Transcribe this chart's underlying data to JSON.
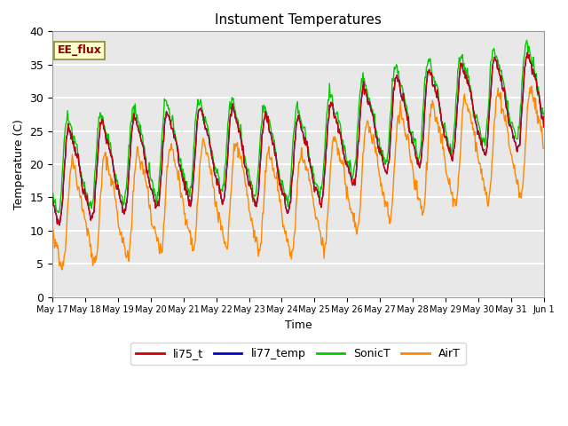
{
  "title": "Instument Temperatures",
  "xlabel": "Time",
  "ylabel": "Temperature (C)",
  "ylim": [
    0,
    40
  ],
  "bg_color": "#e8e8e8",
  "grid_color": "white",
  "colors": {
    "li75_t": "#cc0000",
    "li77_temp": "#0000cc",
    "SonicT": "#00cc00",
    "AirT": "#ff8800"
  },
  "tick_labels": [
    "May 17",
    "May 18",
    "May 19",
    "May 20",
    "May 21",
    "May 22",
    "May 23",
    "May 24",
    "May 25",
    "May 26",
    "May 27",
    "May 28",
    "May 29",
    "May 30",
    "May 31",
    "Jun 1"
  ],
  "annotation_text": "EE_flux",
  "legend_labels": [
    "li75_t",
    "li77_temp",
    "SonicT",
    "AirT"
  ]
}
